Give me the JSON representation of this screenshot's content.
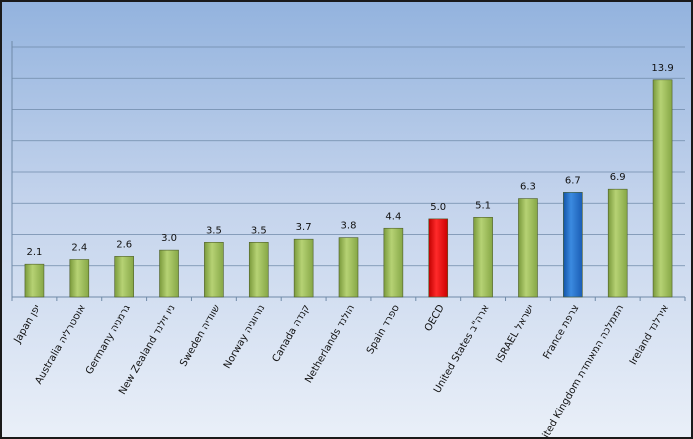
{
  "chart_data": {
    "type": "bar",
    "categories": [
      "Japan יפן",
      "Australia אוסטרליה",
      "Germany גרמניה",
      "New Zealand ניו זילנד",
      "Sweden שוודיה",
      "Norway נורווגיה",
      "Canada קנדה",
      "Netherlands הולנד",
      "Spain ספרד",
      "OECD",
      "United States ארה\"ב",
      "ISRAEL ישראל",
      "France צרפת",
      "United Kingdom הממלכה המאוחדת",
      "Ireland אירלנד"
    ],
    "values": [
      2.1,
      2.4,
      2.6,
      3.0,
      3.5,
      3.5,
      3.7,
      3.8,
      4.4,
      5.0,
      5.1,
      6.3,
      6.7,
      6.9,
      13.9
    ],
    "value_labels": [
      "2.1",
      "2.4",
      "2.6",
      "3.0",
      "3.5",
      "3.5",
      "3.7",
      "3.8",
      "4.4",
      "5.0",
      "5.1",
      "6.3",
      "6.7",
      "6.9",
      "13.9"
    ],
    "bar_colors": [
      "#9bbb59",
      "#9bbb59",
      "#9bbb59",
      "#9bbb59",
      "#9bbb59",
      "#9bbb59",
      "#9bbb59",
      "#9bbb59",
      "#9bbb59",
      "#ff0000",
      "#9bbb59",
      "#9bbb59",
      "#1f6fc5",
      "#9bbb59",
      "#9bbb59"
    ],
    "title": "",
    "xlabel": "",
    "ylabel": "",
    "ylim": [
      0,
      16
    ],
    "y_gridlines": [
      0,
      2,
      4,
      6,
      8,
      10,
      12,
      14,
      16
    ],
    "grid": true,
    "legend": "none"
  }
}
